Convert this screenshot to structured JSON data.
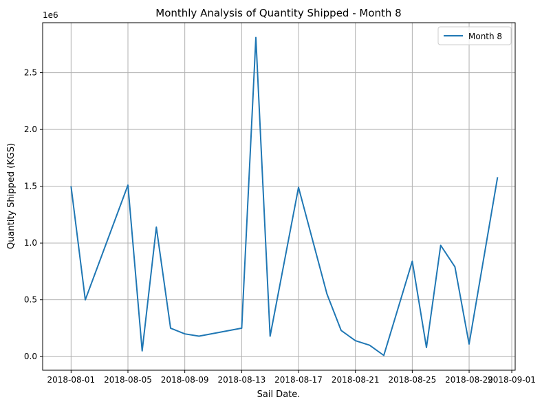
{
  "chart_data": {
    "type": "line",
    "title": "Monthly Analysis of Quantity Shipped - Month 8",
    "xlabel": "Sail Date.",
    "ylabel": "Quantity Shipped (KGS)",
    "y_scale_label": "1e6",
    "x_ticks": [
      "2018-08-01",
      "2018-08-05",
      "2018-08-09",
      "2018-08-13",
      "2018-08-17",
      "2018-08-21",
      "2018-08-25",
      "2018-08-29",
      "2018-09-01"
    ],
    "y_ticks": [
      "0.0",
      "0.5",
      "1.0",
      "1.5",
      "2.0",
      "2.5"
    ],
    "xlim": [
      "2018-07-30",
      "2018-09-01"
    ],
    "ylim": [
      -0.12,
      2.94
    ],
    "grid": true,
    "legend": {
      "position": "top-right",
      "entries": [
        "Month 8"
      ]
    },
    "series": [
      {
        "name": "Month 8",
        "color": "#1f77b4",
        "x": [
          "2018-08-01",
          "2018-08-02",
          "2018-08-05",
          "2018-08-06",
          "2018-08-07",
          "2018-08-08",
          "2018-08-09",
          "2018-08-10",
          "2018-08-13",
          "2018-08-14",
          "2018-08-15",
          "2018-08-17",
          "2018-08-19",
          "2018-08-20",
          "2018-08-21",
          "2018-08-22",
          "2018-08-23",
          "2018-08-25",
          "2018-08-26",
          "2018-08-27",
          "2018-08-28",
          "2018-08-29",
          "2018-08-31"
        ],
        "values": [
          1.5,
          0.5,
          1.51,
          0.05,
          1.14,
          0.25,
          0.2,
          0.18,
          0.25,
          2.81,
          0.18,
          1.49,
          0.55,
          0.23,
          0.14,
          0.1,
          0.01,
          0.84,
          0.08,
          0.98,
          0.79,
          0.11,
          1.58
        ]
      }
    ]
  }
}
